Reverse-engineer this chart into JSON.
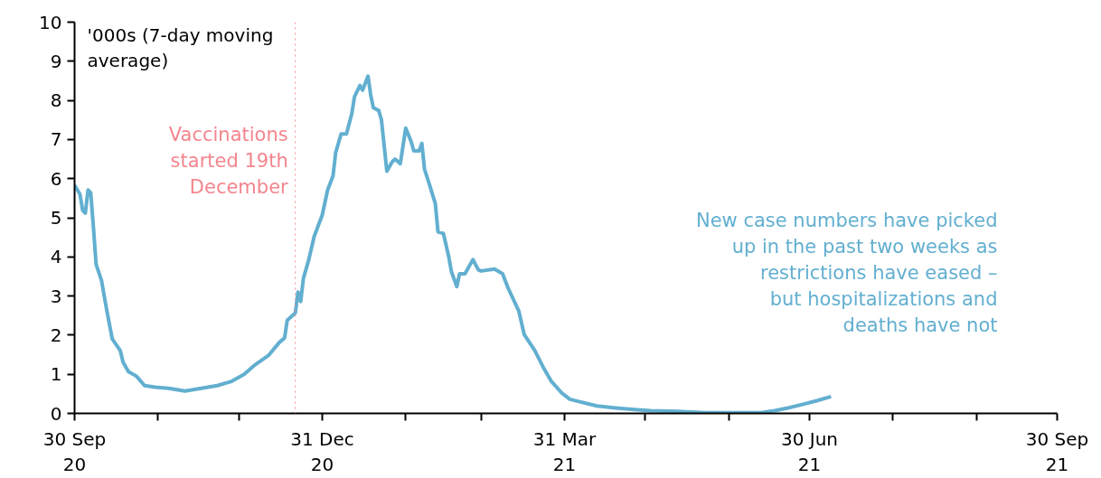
{
  "chart_data": {
    "type": "line",
    "ylabel": "'000s (7-day moving average)",
    "annotations": [
      "Vaccinations started 19th December",
      "New case numbers have picked up in the past two weeks as restrictions have eased – but hospitalizations and deaths have not"
    ],
    "ref_lines": [
      {
        "axis": "x",
        "value": "2020-12-21",
        "color": "#f4858e",
        "line_style": "dotted"
      }
    ],
    "xlim": [
      "2020-09-30",
      "2021-09-30"
    ],
    "xticks": [
      {
        "value": "2020-09-30",
        "label": "30 Sep\n20"
      },
      {
        "value": "2020-10-31",
        "label": null
      },
      {
        "value": "2020-11-30",
        "label": null
      },
      {
        "value": "2020-12-31",
        "label": "31 Dec\n20"
      },
      {
        "value": "2021-01-31",
        "label": null
      },
      {
        "value": "2021-02-28",
        "label": null
      },
      {
        "value": "2021-03-31",
        "label": "31 Mar\n21"
      },
      {
        "value": "2021-04-30",
        "label": null
      },
      {
        "value": "2021-05-31",
        "label": null
      },
      {
        "value": "2021-06-30",
        "label": "30 Jun\n21"
      },
      {
        "value": "2021-07-31",
        "label": null
      },
      {
        "value": "2021-08-31",
        "label": null
      },
      {
        "value": "2021-09-30",
        "label": "30 Sep\n21"
      }
    ],
    "ylim": [
      0,
      10
    ],
    "yticks": [
      0,
      1,
      2,
      3,
      4,
      5,
      6,
      7,
      8,
      9,
      10
    ],
    "grid": false,
    "line_style": "solid",
    "series": [
      {
        "color": "#62afd0",
        "x": [
          "2020-09-30",
          "2020-10-02",
          "2020-10-03",
          "2020-10-04",
          "2020-10-05",
          "2020-10-06",
          "2020-10-07",
          "2020-10-08",
          "2020-10-10",
          "2020-10-12",
          "2020-10-14",
          "2020-10-17",
          "2020-10-18",
          "2020-10-20",
          "2020-10-23",
          "2020-10-26",
          "2020-10-30",
          "2020-11-04",
          "2020-11-10",
          "2020-11-16",
          "2020-11-22",
          "2020-11-27",
          "2020-12-02",
          "2020-12-06",
          "2020-12-11",
          "2020-12-15",
          "2020-12-17",
          "2020-12-18",
          "2020-12-21",
          "2020-12-22",
          "2020-12-23",
          "2020-12-24",
          "2020-12-26",
          "2020-12-28",
          "2020-12-31",
          "2021-01-02",
          "2021-01-04",
          "2021-01-05",
          "2021-01-07",
          "2021-01-09",
          "2021-01-11",
          "2021-01-12",
          "2021-01-14",
          "2021-01-15",
          "2021-01-17",
          "2021-01-18",
          "2021-01-19",
          "2021-01-21",
          "2021-01-22",
          "2021-01-24",
          "2021-01-26",
          "2021-01-27",
          "2021-01-29",
          "2021-01-31",
          "2021-02-02",
          "2021-02-03",
          "2021-02-05",
          "2021-02-06",
          "2021-02-07",
          "2021-02-09",
          "2021-02-11",
          "2021-02-12",
          "2021-02-14",
          "2021-02-16",
          "2021-02-17",
          "2021-02-19",
          "2021-02-20",
          "2021-02-22",
          "2021-02-25",
          "2021-02-27",
          "2021-02-28",
          "2021-03-05",
          "2021-03-08",
          "2021-03-10",
          "2021-03-14",
          "2021-03-16",
          "2021-03-20",
          "2021-03-23",
          "2021-03-26",
          "2021-03-30",
          "2021-04-02",
          "2021-04-05",
          "2021-04-12",
          "2021-04-19",
          "2021-04-26",
          "2021-05-02",
          "2021-05-12",
          "2021-05-22",
          "2021-06-01",
          "2021-06-12",
          "2021-06-17",
          "2021-06-22",
          "2021-06-28",
          "2021-07-03",
          "2021-07-08"
        ],
        "values": [
          5.83,
          5.6,
          5.19,
          5.12,
          5.71,
          5.64,
          4.76,
          3.81,
          3.4,
          2.62,
          1.9,
          1.6,
          1.31,
          1.07,
          0.95,
          0.71,
          0.67,
          0.64,
          0.57,
          0.64,
          0.71,
          0.81,
          1.0,
          1.24,
          1.48,
          1.81,
          1.93,
          2.38,
          2.57,
          3.1,
          2.86,
          3.45,
          3.93,
          4.52,
          5.07,
          5.71,
          6.07,
          6.67,
          7.14,
          7.14,
          7.67,
          8.1,
          8.38,
          8.26,
          8.62,
          8.14,
          7.81,
          7.74,
          7.5,
          6.19,
          6.43,
          6.5,
          6.38,
          7.29,
          6.95,
          6.71,
          6.71,
          6.9,
          6.24,
          5.81,
          5.36,
          4.64,
          4.6,
          4.0,
          3.62,
          3.24,
          3.57,
          3.57,
          3.93,
          3.67,
          3.64,
          3.69,
          3.57,
          3.21,
          2.62,
          2.02,
          1.6,
          1.19,
          0.83,
          0.52,
          0.36,
          0.31,
          0.19,
          0.14,
          0.1,
          0.07,
          0.05,
          0.02,
          0.02,
          0.02,
          0.07,
          0.14,
          0.24,
          0.33,
          0.43
        ]
      }
    ]
  }
}
